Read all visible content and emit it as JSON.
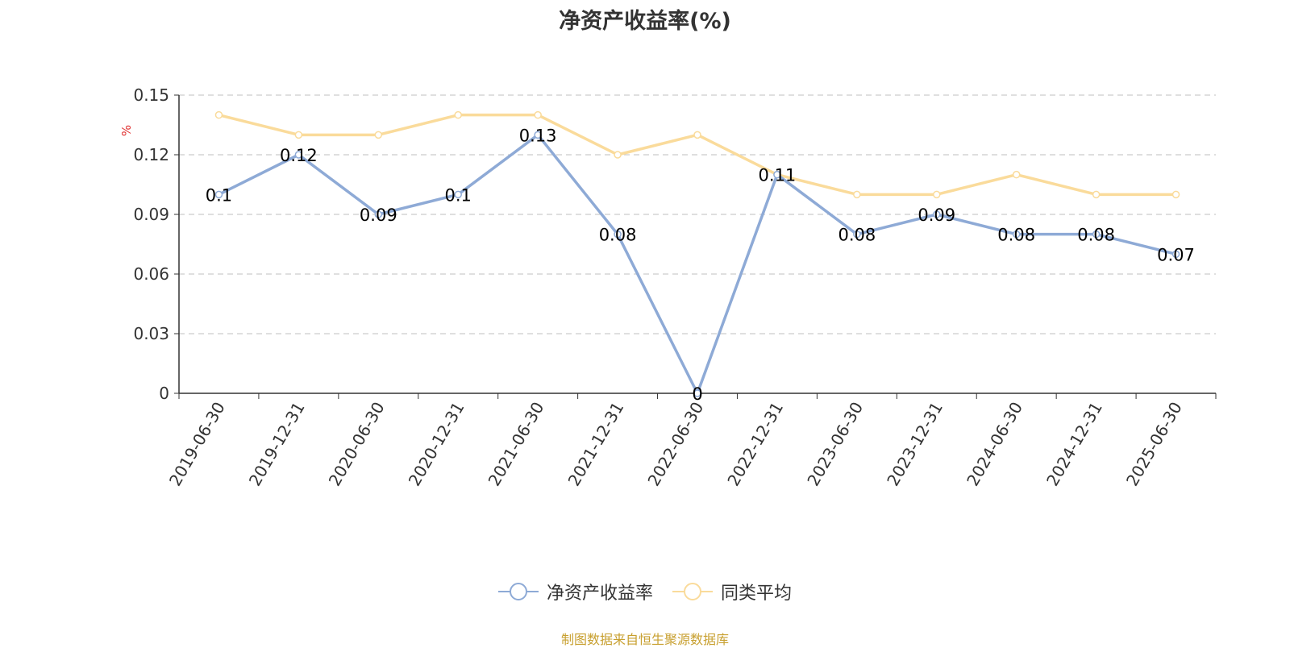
{
  "chart_data": {
    "type": "line",
    "title": "净资产收益率(%)",
    "ylabel": "%",
    "categories": [
      "2019-06-30",
      "2019-12-31",
      "2020-06-30",
      "2020-12-31",
      "2021-06-30",
      "2021-12-31",
      "2022-06-30",
      "2022-12-31",
      "2023-06-30",
      "2023-12-31",
      "2024-06-30",
      "2024-12-31",
      "2025-06-30"
    ],
    "series": [
      {
        "name": "净资产收益率",
        "color": "#8eaad6",
        "values": [
          0.1,
          0.12,
          0.09,
          0.1,
          0.13,
          0.08,
          0,
          0.11,
          0.08,
          0.09,
          0.08,
          0.08,
          0.07
        ],
        "data_labels": true
      },
      {
        "name": "同类平均",
        "color": "#fadb9b",
        "values": [
          0.14,
          0.13,
          0.13,
          0.14,
          0.14,
          0.12,
          0.13,
          0.11,
          0.1,
          0.1,
          0.11,
          0.1,
          0.1
        ],
        "data_labels": false
      }
    ],
    "ylim": [
      0,
      0.15
    ],
    "yticks": [
      "0",
      "0.03",
      "0.06",
      "0.09",
      "0.12",
      "0.15"
    ],
    "grid": true,
    "legend": "bottom-center"
  },
  "footer": "制图数据来自恒生聚源数据库"
}
